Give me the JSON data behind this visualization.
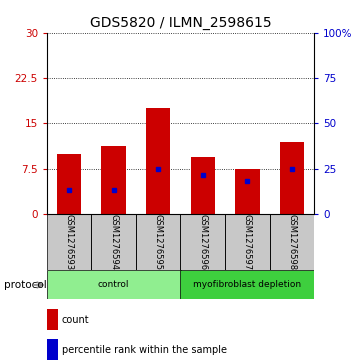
{
  "title": "GDS5820 / ILMN_2598615",
  "samples": [
    "GSM1276593",
    "GSM1276594",
    "GSM1276595",
    "GSM1276596",
    "GSM1276597",
    "GSM1276598"
  ],
  "red_bar_heights": [
    10.0,
    11.2,
    17.5,
    9.5,
    7.5,
    12.0
  ],
  "blue_marker_values": [
    4.0,
    4.0,
    7.5,
    6.5,
    5.5,
    7.5
  ],
  "groups": [
    {
      "label": "control",
      "start": 0,
      "end": 3,
      "color": "#90ee90"
    },
    {
      "label": "myofibroblast depletion",
      "start": 3,
      "end": 6,
      "color": "#3ecf3e"
    }
  ],
  "ylim_left": [
    0,
    30
  ],
  "ylim_right": [
    0,
    100
  ],
  "yticks_left": [
    0,
    7.5,
    15,
    22.5,
    30
  ],
  "yticks_right": [
    0,
    25,
    50,
    75,
    100
  ],
  "yticklabels_left": [
    "0",
    "7.5",
    "15",
    "22.5",
    "30"
  ],
  "yticklabels_right": [
    "0",
    "25",
    "50",
    "75",
    "100%"
  ],
  "bar_color": "#cc0000",
  "marker_color": "#0000cc",
  "bar_width": 0.55,
  "title_fontsize": 10,
  "tick_fontsize": 7.5,
  "sample_box_color": "#c8c8c8",
  "protocol_label": "protocol",
  "legend_count_label": "count",
  "legend_percentile_label": "percentile rank within the sample"
}
